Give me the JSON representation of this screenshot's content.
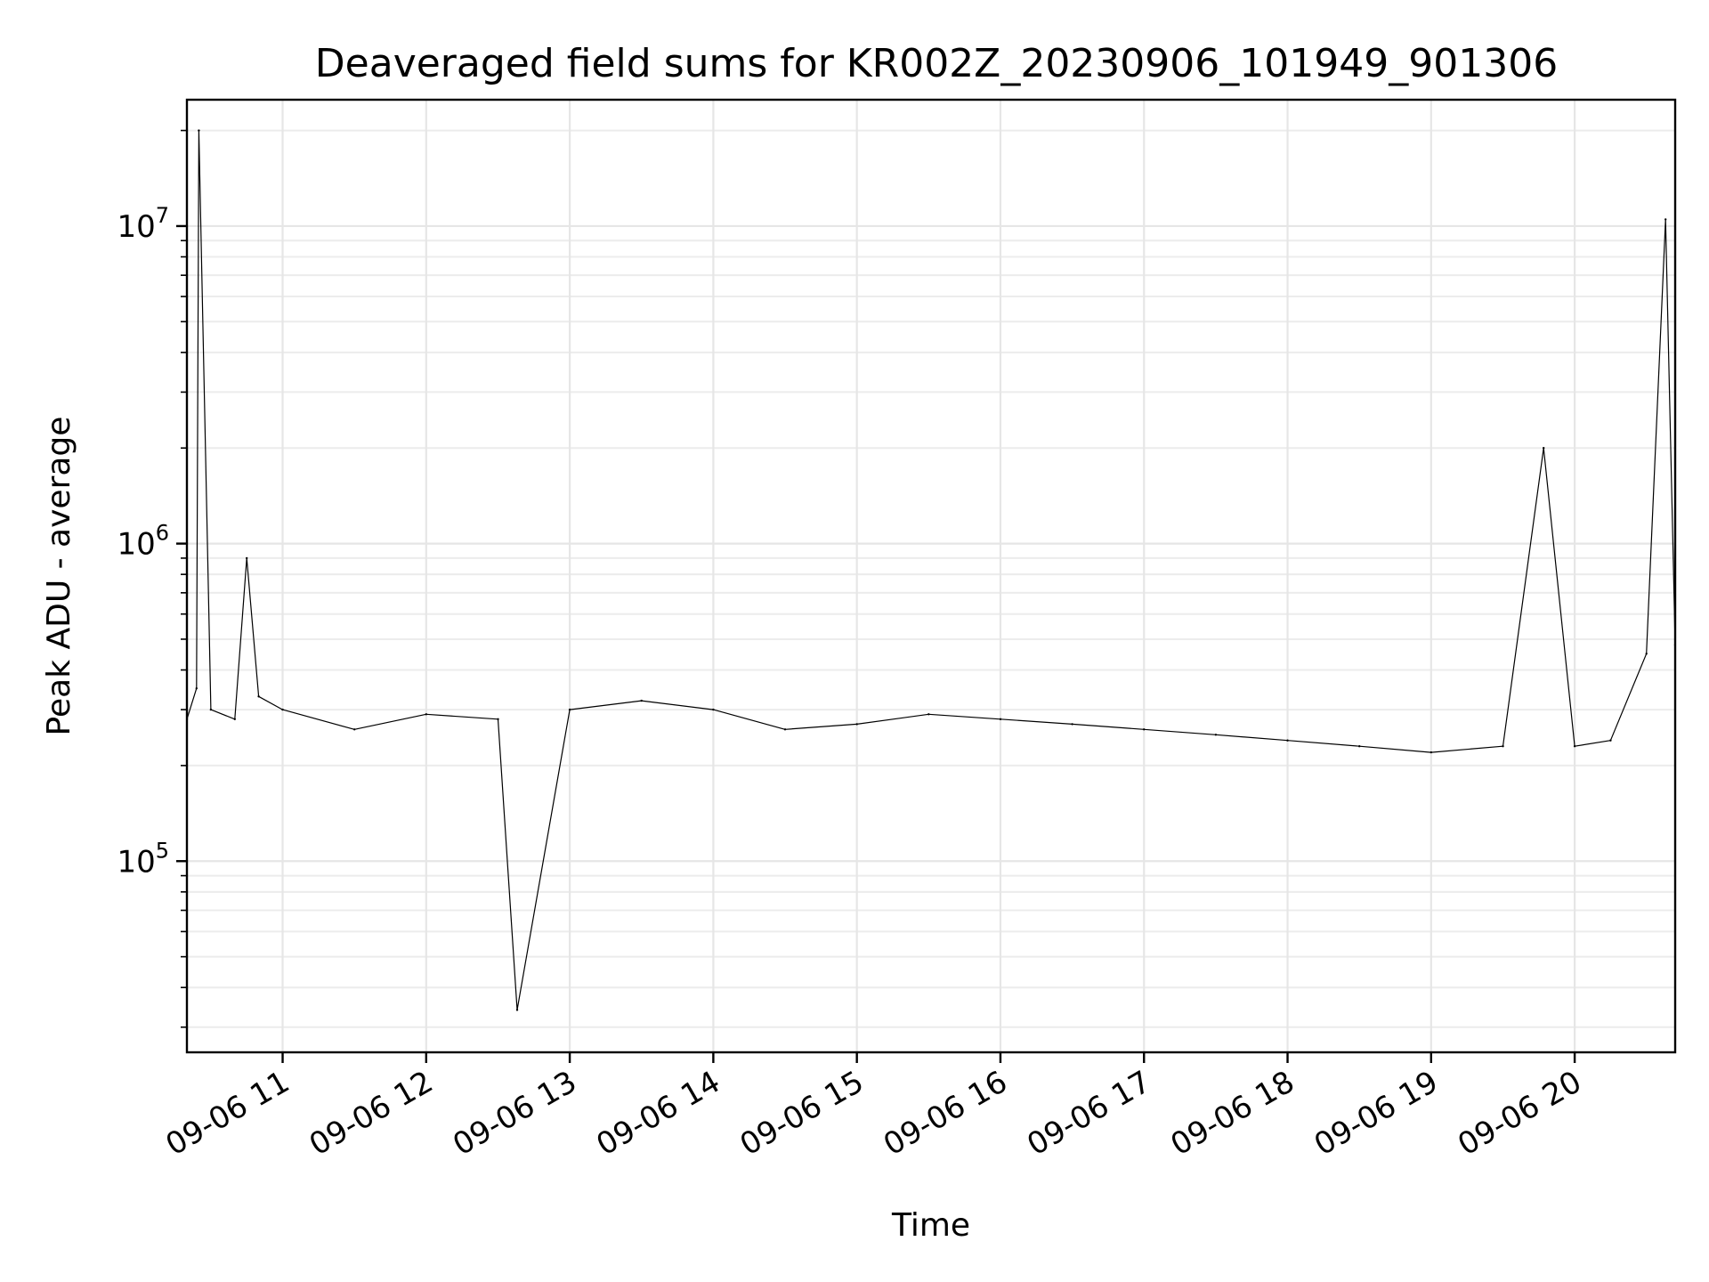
{
  "chart_data": {
    "type": "line",
    "title": "Deaveraged field sums for KR002Z_20230906_101949_901306",
    "xlabel": "Time",
    "ylabel": "Peak ADU - average",
    "yscale": "log",
    "xlim": [
      "2023-09-06 10:20",
      "2023-09-06 20:42"
    ],
    "ylim": [
      25000,
      25000000
    ],
    "x_ticks": [
      {
        "value": "2023-09-06 11:00",
        "label": "09-06 11"
      },
      {
        "value": "2023-09-06 12:00",
        "label": "09-06 12"
      },
      {
        "value": "2023-09-06 13:00",
        "label": "09-06 13"
      },
      {
        "value": "2023-09-06 14:00",
        "label": "09-06 14"
      },
      {
        "value": "2023-09-06 15:00",
        "label": "09-06 15"
      },
      {
        "value": "2023-09-06 16:00",
        "label": "09-06 16"
      },
      {
        "value": "2023-09-06 17:00",
        "label": "09-06 17"
      },
      {
        "value": "2023-09-06 18:00",
        "label": "09-06 18"
      },
      {
        "value": "2023-09-06 19:00",
        "label": "09-06 19"
      },
      {
        "value": "2023-09-06 20:00",
        "label": "09-06 20"
      }
    ],
    "y_ticks": [
      {
        "value": 100000,
        "base": "10",
        "exp": "5"
      },
      {
        "value": 1000000,
        "base": "10",
        "exp": "6"
      },
      {
        "value": 10000000,
        "base": "10",
        "exp": "7"
      }
    ],
    "grid": true,
    "series_color": "#000000",
    "series": [
      {
        "x": [
          "2023-09-06 10:20",
          "2023-09-06 10:24",
          "2023-09-06 10:25",
          "2023-09-06 10:30",
          "2023-09-06 10:40",
          "2023-09-06 10:45",
          "2023-09-06 10:50",
          "2023-09-06 11:00",
          "2023-09-06 11:30",
          "2023-09-06 12:00",
          "2023-09-06 12:30",
          "2023-09-06 12:38",
          "2023-09-06 13:00",
          "2023-09-06 13:30",
          "2023-09-06 14:00",
          "2023-09-06 14:30",
          "2023-09-06 15:00",
          "2023-09-06 15:30",
          "2023-09-06 16:00",
          "2023-09-06 16:30",
          "2023-09-06 17:00",
          "2023-09-06 17:30",
          "2023-09-06 18:00",
          "2023-09-06 18:30",
          "2023-09-06 19:00",
          "2023-09-06 19:30",
          "2023-09-06 19:47",
          "2023-09-06 20:00",
          "2023-09-06 20:15",
          "2023-09-06 20:30",
          "2023-09-06 20:38",
          "2023-09-06 20:42"
        ],
        "values": [
          280000,
          350000,
          20000000,
          300000,
          280000,
          900000,
          330000,
          300000,
          260000,
          290000,
          280000,
          34000,
          300000,
          320000,
          300000,
          260000,
          270000,
          290000,
          280000,
          270000,
          260000,
          250000,
          240000,
          230000,
          220000,
          230000,
          2000000,
          230000,
          240000,
          450000,
          10500000,
          480000
        ]
      }
    ]
  }
}
